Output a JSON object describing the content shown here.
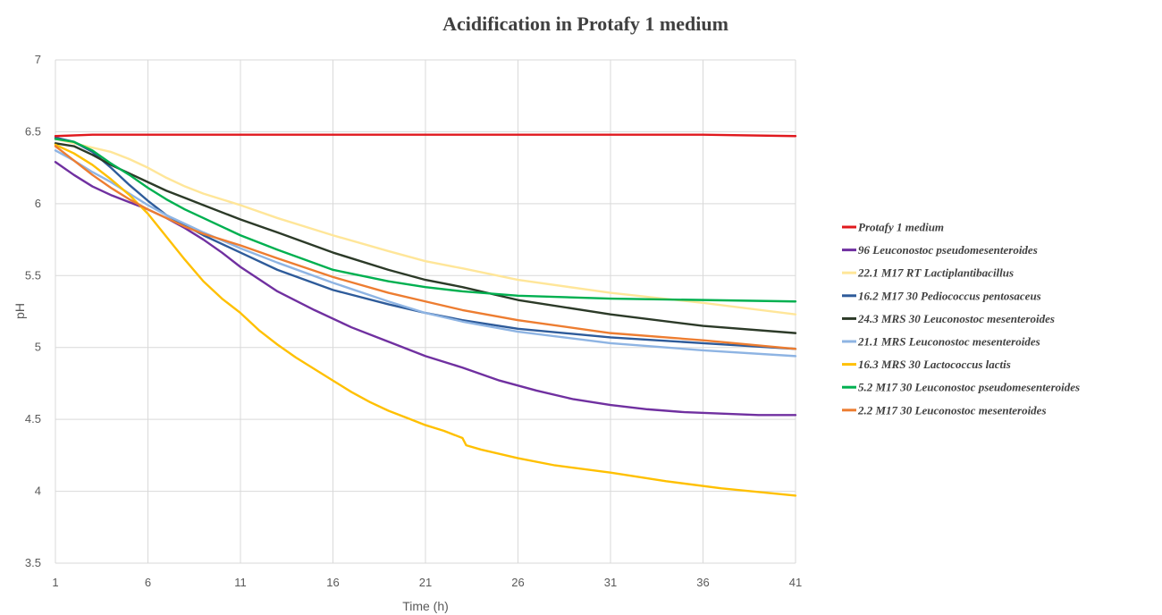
{
  "chart_data": {
    "type": "line",
    "title": "Acidification in Protafy 1 medium",
    "xlabel": "Time (h)",
    "ylabel": "pH",
    "xlim": [
      1,
      41
    ],
    "ylim": [
      3.5,
      7
    ],
    "xticks": [
      1,
      6,
      11,
      16,
      21,
      26,
      31,
      36,
      41
    ],
    "yticks": [
      3.5,
      4,
      4.5,
      5,
      5.5,
      6,
      6.5,
      7
    ],
    "grid": true,
    "legend_position": "right",
    "series": [
      {
        "name": "Protafy 1 medium",
        "color": "#e0191e",
        "x": [
          1,
          3,
          6,
          11,
          16,
          21,
          26,
          31,
          36,
          41
        ],
        "y": [
          6.47,
          6.48,
          6.48,
          6.48,
          6.48,
          6.48,
          6.48,
          6.48,
          6.48,
          6.47
        ]
      },
      {
        "name": "96 Leuconostoc pseudomesenteroides",
        "color": "#7030a0",
        "x": [
          1,
          2,
          3,
          4,
          5,
          6,
          7,
          8,
          9,
          10,
          11,
          13,
          15,
          17,
          19,
          21,
          23,
          25,
          27,
          29,
          31,
          33,
          35,
          37,
          39,
          41
        ],
        "y": [
          6.29,
          6.2,
          6.12,
          6.06,
          6.01,
          5.96,
          5.9,
          5.83,
          5.75,
          5.66,
          5.56,
          5.39,
          5.26,
          5.14,
          5.04,
          4.94,
          4.86,
          4.77,
          4.7,
          4.64,
          4.6,
          4.57,
          4.55,
          4.54,
          4.53,
          4.53
        ]
      },
      {
        "name": "22.1 M17 RT Lactiplantibacillus",
        "color": "#ffe699",
        "x": [
          1,
          2,
          3,
          4,
          5,
          6,
          7,
          8,
          9,
          11,
          13,
          16,
          19,
          21,
          23,
          26,
          31,
          36,
          41
        ],
        "y": [
          6.45,
          6.42,
          6.39,
          6.36,
          6.31,
          6.25,
          6.18,
          6.12,
          6.07,
          5.99,
          5.9,
          5.78,
          5.67,
          5.6,
          5.55,
          5.47,
          5.38,
          5.31,
          5.23
        ]
      },
      {
        "name": "16.2 M17 30 Pediococcus pentosaceus",
        "color": "#2e5b9a",
        "x": [
          1,
          2,
          3,
          4,
          5,
          6,
          7,
          8,
          9,
          11,
          13,
          16,
          19,
          21,
          23,
          26,
          31,
          36,
          41
        ],
        "y": [
          6.46,
          6.43,
          6.36,
          6.25,
          6.13,
          6.02,
          5.92,
          5.85,
          5.78,
          5.66,
          5.54,
          5.4,
          5.3,
          5.24,
          5.19,
          5.13,
          5.07,
          5.03,
          4.99
        ]
      },
      {
        "name": "24.3 MRS 30 Leuconostoc mesenteroides",
        "color": "#2c3a28",
        "x": [
          1,
          2,
          3,
          4,
          5,
          6,
          7,
          8,
          9,
          11,
          13,
          16,
          19,
          21,
          23,
          26,
          31,
          36,
          41
        ],
        "y": [
          6.42,
          6.4,
          6.34,
          6.27,
          6.21,
          6.15,
          6.09,
          6.04,
          5.99,
          5.89,
          5.8,
          5.66,
          5.54,
          5.47,
          5.42,
          5.33,
          5.23,
          5.15,
          5.1
        ]
      },
      {
        "name": "21.1 MRS Leuconostoc mesenteroides",
        "color": "#8eb4e3",
        "x": [
          1,
          2,
          3,
          4,
          5,
          6,
          7,
          8,
          9,
          11,
          13,
          16,
          19,
          21,
          23,
          26,
          31,
          36,
          41
        ],
        "y": [
          6.37,
          6.3,
          6.22,
          6.15,
          6.07,
          5.99,
          5.92,
          5.86,
          5.8,
          5.69,
          5.59,
          5.45,
          5.32,
          5.24,
          5.18,
          5.11,
          5.03,
          4.98,
          4.94
        ]
      },
      {
        "name": "16.3 MRS 30 Lactococcus lactis",
        "color": "#ffc000",
        "x": [
          1,
          2,
          3,
          4,
          5,
          6,
          7,
          8,
          9,
          10,
          11,
          12,
          13,
          14,
          15,
          16,
          17,
          18,
          19,
          20,
          21,
          22,
          23,
          23.2,
          24,
          26,
          28,
          31,
          34,
          37,
          41
        ],
        "y": [
          6.41,
          6.35,
          6.27,
          6.17,
          6.06,
          5.93,
          5.77,
          5.61,
          5.46,
          5.34,
          5.24,
          5.12,
          5.02,
          4.93,
          4.85,
          4.77,
          4.69,
          4.62,
          4.56,
          4.51,
          4.46,
          4.42,
          4.37,
          4.32,
          4.29,
          4.23,
          4.18,
          4.13,
          4.07,
          4.02,
          3.97
        ]
      },
      {
        "name": "5.2 M17 30 Leuconostoc pseudomesenteroides",
        "color": "#00b050",
        "x": [
          1,
          2,
          3,
          4,
          5,
          6,
          7,
          8,
          9,
          11,
          13,
          16,
          19,
          21,
          23,
          26,
          31,
          36,
          41
        ],
        "y": [
          6.45,
          6.43,
          6.37,
          6.28,
          6.2,
          6.11,
          6.03,
          5.96,
          5.9,
          5.78,
          5.68,
          5.54,
          5.46,
          5.42,
          5.39,
          5.36,
          5.34,
          5.33,
          5.32
        ]
      },
      {
        "name": "2.2 M17 30 Leuconostoc mesenteroides",
        "color": "#ed7d31",
        "x": [
          1,
          2,
          3,
          4,
          5,
          6,
          7,
          8,
          9,
          11,
          13,
          16,
          19,
          21,
          23,
          26,
          31,
          36,
          41
        ],
        "y": [
          6.4,
          6.3,
          6.2,
          6.11,
          6.03,
          5.96,
          5.9,
          5.84,
          5.79,
          5.71,
          5.62,
          5.49,
          5.38,
          5.32,
          5.26,
          5.19,
          5.1,
          5.05,
          4.99
        ]
      }
    ]
  }
}
